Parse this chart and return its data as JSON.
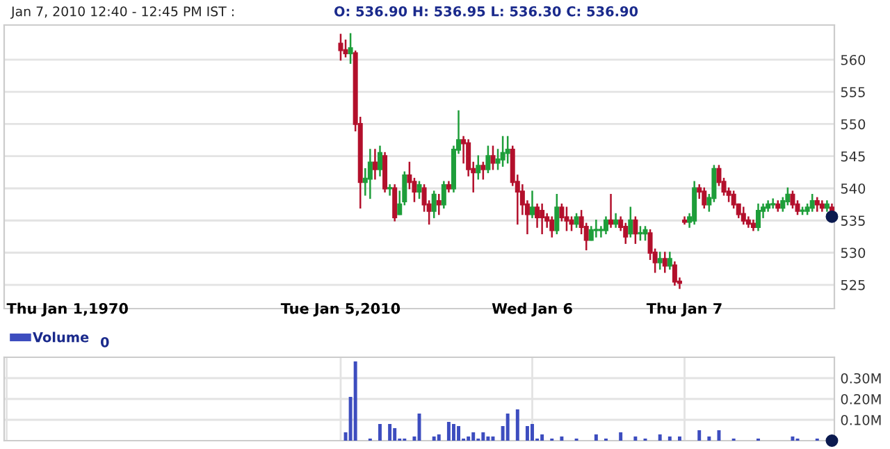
{
  "chart_data": [
    {
      "type": "candlestick",
      "title": "Jan 7, 2010 12:40 - 12:45 PM IST :",
      "subtitle": "O: 536.90 H: 536.95 L: 536.30 C: 536.90",
      "tick_labels": "y",
      "categories": [
        null,
        null,
        null,
        null,
        null,
        null,
        null,
        null,
        null,
        null,
        null,
        null,
        null,
        null,
        null,
        null,
        null,
        null,
        null,
        null,
        null,
        null,
        null,
        null,
        null,
        null,
        null,
        null,
        null,
        null,
        null,
        null,
        null,
        null,
        null,
        null,
        null,
        null,
        null,
        null,
        null,
        null,
        null,
        null,
        null,
        null,
        null,
        null,
        null,
        null,
        null,
        null,
        null,
        null,
        null,
        null,
        null,
        null,
        null,
        null,
        null,
        null,
        null,
        null,
        null,
        null,
        null,
        null,
        null,
        null,
        null,
        null,
        null,
        null,
        null,
        null,
        null,
        null,
        null,
        null,
        null,
        null,
        null,
        null,
        null,
        null,
        null,
        null,
        null,
        null,
        null,
        null,
        null,
        null,
        null,
        null,
        null,
        null,
        null,
        null,
        null,
        null,
        null,
        null,
        null,
        null,
        null,
        null,
        null,
        null,
        null,
        null,
        null,
        null,
        null,
        null,
        null,
        null,
        null,
        null,
        null,
        null,
        null,
        null,
        null,
        null,
        null,
        null,
        null,
        null,
        null,
        null,
        null,
        null,
        null,
        null,
        null,
        null,
        null,
        null,
        null,
        null,
        null,
        null,
        null,
        null,
        null,
        null,
        null,
        null,
        null,
        null,
        null,
        null,
        null,
        null,
        null,
        null,
        null,
        null,
        null,
        null,
        null,
        null,
        null,
        null,
        null,
        null,
        null
      ],
      "ohlc": [
        null,
        null,
        null,
        null,
        null,
        null,
        null,
        null,
        null,
        null,
        null,
        null,
        null,
        null,
        null,
        null,
        null,
        null,
        null,
        null,
        null,
        null,
        null,
        null,
        null,
        null,
        null,
        null,
        null,
        null,
        null,
        null,
        null,
        null,
        null,
        null,
        null,
        null,
        null,
        null,
        null,
        null,
        null,
        null,
        null,
        null,
        null,
        null,
        null,
        null,
        null,
        null,
        null,
        null,
        null,
        null,
        null,
        null,
        null,
        null,
        null,
        null,
        null,
        null,
        null,
        null,
        null,
        null,
        [
          562.5,
          563.9,
          560,
          561.5
        ],
        [
          561.5,
          563,
          560.5,
          561
        ],
        [
          561,
          564,
          559.5,
          561.8
        ],
        [
          561,
          561.3,
          549,
          550
        ],
        [
          550,
          551,
          537,
          541
        ],
        [
          541,
          543,
          539,
          541.5
        ],
        [
          541.5,
          546,
          538.5,
          544
        ],
        [
          544,
          546,
          541.5,
          543
        ],
        [
          543,
          546.5,
          542,
          545.5
        ],
        [
          545,
          545.5,
          539.5,
          540
        ],
        [
          540,
          540.5,
          539,
          540
        ],
        [
          540,
          540.5,
          535,
          535.5
        ],
        [
          536,
          539.5,
          536,
          537.5
        ],
        [
          538,
          542.5,
          537.5,
          542
        ],
        [
          542,
          544,
          540,
          541
        ],
        [
          541,
          541.5,
          538,
          539.5
        ],
        [
          539.5,
          541,
          538.5,
          540.5
        ],
        [
          540,
          540.5,
          536.5,
          537.5
        ],
        [
          537.5,
          538,
          534.5,
          536.5
        ],
        [
          536.5,
          539.5,
          535.5,
          539
        ],
        [
          538,
          539,
          536,
          537.5
        ],
        [
          537.5,
          541,
          537,
          540.5
        ],
        [
          540.5,
          541,
          539.5,
          540
        ],
        [
          540,
          546.5,
          539.5,
          546
        ],
        [
          546,
          552,
          545.5,
          547.5
        ],
        [
          547.5,
          548,
          544,
          547
        ],
        [
          547,
          547.5,
          542,
          543
        ],
        [
          543,
          544,
          539.5,
          542.5
        ],
        [
          542.5,
          545,
          541.5,
          543.5
        ],
        [
          543.5,
          544,
          541.5,
          543
        ],
        [
          543,
          546.5,
          542.5,
          545
        ],
        [
          545,
          546.5,
          543,
          544
        ],
        [
          544,
          546,
          543,
          544.5
        ],
        [
          544.5,
          548,
          543.5,
          545.5
        ],
        [
          545.5,
          548,
          544,
          546
        ],
        [
          546,
          546.5,
          540.5,
          541
        ],
        [
          541,
          542,
          534.5,
          539.5
        ],
        [
          539.5,
          540.5,
          536,
          537.5
        ],
        [
          537.5,
          538,
          533,
          536
        ],
        [
          536,
          539.5,
          535.5,
          537
        ],
        [
          537,
          537.5,
          534,
          535.5
        ],
        [
          536.5,
          537.5,
          533,
          535.5
        ],
        [
          535.5,
          536,
          534,
          535
        ],
        [
          535,
          535.5,
          532.5,
          533.5
        ],
        [
          533.5,
          539,
          533,
          537
        ],
        [
          537,
          537.5,
          535,
          535.5
        ],
        [
          535.5,
          537,
          533.5,
          535
        ],
        [
          535,
          535.5,
          533.5,
          534.5
        ],
        [
          534.5,
          536,
          534,
          535.5
        ],
        [
          535.5,
          536.5,
          533,
          534
        ],
        [
          534,
          534.5,
          530.5,
          532
        ],
        [
          532,
          534,
          532,
          533.5
        ],
        [
          533.5,
          535,
          532.5,
          533.5
        ],
        [
          533.5,
          534,
          532.5,
          533.5
        ],
        [
          533.5,
          535.5,
          533,
          535
        ],
        [
          535,
          539,
          534,
          534.5
        ],
        [
          534.5,
          536,
          534,
          535
        ],
        [
          535,
          535.5,
          533.5,
          534
        ],
        [
          534,
          534.5,
          531.5,
          532.5
        ],
        [
          533,
          537,
          532.5,
          535
        ],
        [
          535,
          535.5,
          531.5,
          533
        ],
        [
          533,
          534,
          532,
          533
        ],
        [
          533,
          534,
          532,
          533.5
        ],
        [
          533,
          533.5,
          529,
          530
        ],
        [
          530,
          530.5,
          527,
          528.5
        ],
        [
          528.5,
          530,
          527.5,
          529
        ],
        [
          529,
          530,
          527,
          528
        ],
        [
          528,
          530,
          527.5,
          529
        ],
        [
          528,
          528.5,
          525,
          525.5
        ],
        [
          525.5,
          526,
          524.5,
          525.3
        ],
        [
          535,
          535.5,
          534.5,
          534.8
        ],
        [
          534.8,
          536,
          534,
          535.5
        ],
        [
          535,
          541,
          534.5,
          540
        ],
        [
          540,
          540.5,
          538.5,
          539.5
        ],
        [
          539.5,
          540,
          537,
          537.5
        ],
        [
          537.5,
          539,
          536.5,
          538.5
        ],
        [
          538.5,
          543.5,
          538,
          543
        ],
        [
          543,
          543.5,
          540.5,
          541
        ],
        [
          541,
          541.5,
          539,
          539.5
        ],
        [
          539.5,
          540,
          538,
          539
        ],
        [
          539,
          539.5,
          537,
          537.5
        ],
        [
          537.5,
          537.5,
          535.5,
          536
        ],
        [
          536,
          537,
          534.5,
          535
        ],
        [
          535,
          535.5,
          534,
          534.5
        ],
        [
          534.5,
          535,
          533.5,
          534
        ],
        [
          534,
          537.5,
          533.5,
          536.5
        ],
        [
          536.5,
          537.5,
          535.5,
          537
        ],
        [
          537,
          538,
          536.5,
          537.5
        ],
        [
          537.5,
          538.3,
          537,
          537.5
        ],
        [
          537.5,
          538,
          536.5,
          537
        ],
        [
          537,
          538.5,
          536.5,
          538
        ],
        [
          538,
          540,
          537.5,
          539
        ],
        [
          539,
          539.5,
          537,
          537.5
        ],
        [
          537.5,
          538,
          536,
          536.5
        ],
        [
          536.5,
          537,
          536,
          536.5
        ],
        [
          536.5,
          537.5,
          536,
          537
        ],
        [
          537,
          539,
          536.5,
          538
        ],
        [
          538,
          538.5,
          536.5,
          537.5
        ],
        [
          537.5,
          538,
          536.5,
          537
        ],
        [
          537,
          538,
          536.5,
          537.5
        ],
        [
          537,
          537.5,
          536,
          536.5
        ]
      ],
      "series": [
        {
          "type": "scatter",
          "color": "#0b1a4f",
          "values": [
            null,
            null,
            null,
            null,
            null,
            null,
            null,
            null,
            null,
            null,
            null,
            null,
            null,
            null,
            null,
            null,
            null,
            null,
            null,
            null,
            null,
            null,
            null,
            null,
            null,
            null,
            null,
            null,
            null,
            null,
            null,
            null,
            null,
            null,
            null,
            null,
            null,
            null,
            null,
            null,
            null,
            null,
            null,
            null,
            null,
            null,
            null,
            null,
            null,
            null,
            null,
            null,
            null,
            null,
            null,
            null,
            null,
            null,
            null,
            null,
            null,
            null,
            null,
            null,
            null,
            null,
            null,
            null,
            null,
            null,
            null,
            null,
            null,
            null,
            null,
            null,
            null,
            null,
            null,
            null,
            null,
            null,
            null,
            null,
            null,
            null,
            null,
            null,
            null,
            null,
            null,
            null,
            null,
            null,
            null,
            null,
            null,
            null,
            null,
            null,
            null,
            null,
            null,
            null,
            null,
            null,
            null,
            null,
            null,
            null,
            null,
            null,
            null,
            null,
            null,
            null,
            null,
            null,
            null,
            null,
            null,
            null,
            null,
            null,
            null,
            null,
            null,
            null,
            null,
            null,
            null,
            null,
            null,
            null,
            null,
            null,
            null,
            null,
            null,
            null,
            null,
            null,
            null,
            null,
            null,
            null,
            null,
            null,
            null,
            null,
            null,
            null,
            null,
            null,
            null,
            null,
            null,
            null,
            null,
            null,
            null,
            null,
            null,
            null,
            null,
            null,
            null,
            null,
            535.6
          ]
        }
      ],
      "marker": "circle",
      "ylim": [
        521.3,
        565.4
      ],
      "yticks": [
        525,
        530,
        535,
        540,
        545,
        550,
        555,
        560
      ],
      "grid": true
    },
    {
      "type": "bar",
      "categories": [
        "Thu Jan 1,1970",
        null,
        null,
        null,
        null,
        null,
        null,
        null,
        null,
        null,
        null,
        null,
        null,
        null,
        null,
        null,
        null,
        null,
        null,
        null,
        null,
        null,
        null,
        null,
        null,
        null,
        null,
        null,
        null,
        null,
        null,
        null,
        null,
        null,
        null,
        null,
        null,
        null,
        null,
        null,
        null,
        null,
        null,
        null,
        null,
        null,
        null,
        null,
        null,
        null,
        null,
        null,
        null,
        null,
        null,
        null,
        null,
        null,
        null,
        null,
        null,
        null,
        null,
        null,
        null,
        null,
        null,
        null,
        "Tue Jan 5,2010",
        null,
        null,
        null,
        null,
        null,
        null,
        null,
        null,
        null,
        null,
        null,
        null,
        null,
        null,
        null,
        null,
        null,
        null,
        null,
        null,
        null,
        null,
        null,
        null,
        null,
        null,
        null,
        null,
        null,
        null,
        null,
        null,
        null,
        null,
        null,
        null,
        null,
        null,
        "Wed Jan 6",
        null,
        null,
        null,
        null,
        null,
        null,
        null,
        null,
        null,
        null,
        null,
        null,
        null,
        null,
        null,
        null,
        null,
        null,
        null,
        null,
        null,
        null,
        null,
        null,
        null,
        null,
        null,
        null,
        null,
        null,
        "Thu Jan 7",
        null,
        null,
        null,
        null,
        null,
        null,
        null,
        null,
        null,
        null,
        null,
        null,
        null,
        null,
        null,
        null,
        null,
        null,
        null,
        null,
        null,
        null,
        null,
        null,
        null,
        null,
        null,
        null,
        null,
        null
      ],
      "series": [
        {
          "name": "Volume",
          "color": "#3d4dbf",
          "values": [
            null,
            null,
            null,
            null,
            null,
            null,
            null,
            null,
            null,
            null,
            null,
            null,
            null,
            null,
            null,
            null,
            null,
            null,
            null,
            null,
            null,
            null,
            null,
            null,
            null,
            null,
            null,
            null,
            null,
            null,
            null,
            null,
            null,
            null,
            null,
            null,
            null,
            null,
            null,
            null,
            null,
            null,
            null,
            null,
            null,
            null,
            null,
            null,
            null,
            null,
            null,
            null,
            null,
            null,
            null,
            null,
            null,
            null,
            null,
            null,
            null,
            null,
            null,
            null,
            null,
            null,
            null,
            null,
            null,
            0.04,
            0.21,
            0.38,
            null,
            null,
            0.01,
            null,
            0.08,
            null,
            0.08,
            0.06,
            0.01,
            0.01,
            null,
            0.02,
            0.13,
            null,
            null,
            0.02,
            0.03,
            null,
            0.09,
            0.08,
            0.07,
            0.01,
            0.02,
            0.04,
            0.01,
            0.04,
            0.02,
            0.02,
            null,
            0.07,
            0.13,
            null,
            0.15,
            null,
            0.07,
            0.08,
            0.01,
            0.03,
            null,
            0.01,
            null,
            0.02,
            null,
            null,
            0.01,
            null,
            null,
            null,
            0.03,
            null,
            0.01,
            null,
            null,
            0.04,
            null,
            null,
            0.02,
            null,
            0.01,
            null,
            null,
            0.03,
            null,
            0.02,
            null,
            0.02,
            null,
            null,
            null,
            0.05,
            null,
            0.02,
            null,
            0.05,
            null,
            null,
            0.01,
            null,
            null,
            null,
            null,
            0.01,
            null,
            null,
            null,
            null,
            null,
            null,
            0.02,
            0.01,
            null,
            null,
            null,
            0.01,
            null,
            null,
            null
          ]
        },
        {
          "type": "scatter",
          "color": "#0b1a4f",
          "values": [
            null,
            null,
            null,
            null,
            null,
            null,
            null,
            null,
            null,
            null,
            null,
            null,
            null,
            null,
            null,
            null,
            null,
            null,
            null,
            null,
            null,
            null,
            null,
            null,
            null,
            null,
            null,
            null,
            null,
            null,
            null,
            null,
            null,
            null,
            null,
            null,
            null,
            null,
            null,
            null,
            null,
            null,
            null,
            null,
            null,
            null,
            null,
            null,
            null,
            null,
            null,
            null,
            null,
            null,
            null,
            null,
            null,
            null,
            null,
            null,
            null,
            null,
            null,
            null,
            null,
            null,
            null,
            null,
            null,
            null,
            null,
            null,
            null,
            null,
            null,
            null,
            null,
            null,
            null,
            null,
            null,
            null,
            null,
            null,
            null,
            null,
            null,
            null,
            null,
            null,
            null,
            null,
            null,
            null,
            null,
            null,
            null,
            null,
            null,
            null,
            null,
            null,
            null,
            null,
            null,
            null,
            null,
            null,
            null,
            null,
            null,
            null,
            null,
            null,
            null,
            null,
            null,
            null,
            null,
            null,
            null,
            null,
            null,
            null,
            null,
            null,
            null,
            null,
            null,
            null,
            null,
            null,
            null,
            null,
            null,
            null,
            null,
            null,
            null,
            null,
            null,
            null,
            null,
            null,
            null,
            null,
            null,
            null,
            null,
            null,
            null,
            null,
            null,
            null,
            null,
            null,
            null,
            null,
            null,
            null,
            null,
            null,
            null,
            null,
            null,
            null,
            null,
            null,
            0
          ]
        }
      ],
      "annotations": [
        "0"
      ],
      "legend": "top left",
      "marker": "circle",
      "ylim": [
        0,
        0.4
      ],
      "yticks": [
        {
          "value": 0.1,
          "label": "0.10M"
        },
        {
          "value": 0.2,
          "label": "0.20M"
        },
        {
          "value": 0.3,
          "label": "0.30M"
        }
      ],
      "grid": true
    }
  ]
}
